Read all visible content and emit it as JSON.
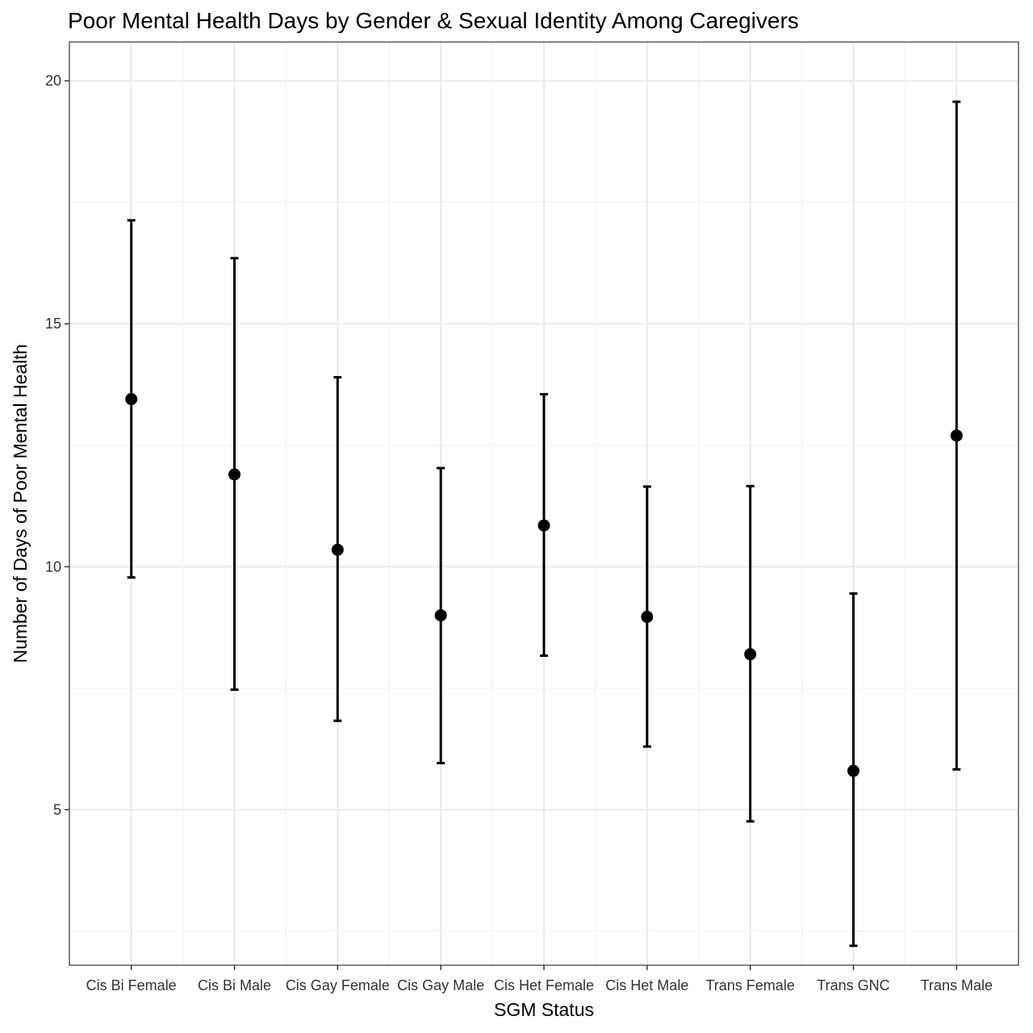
{
  "chart_data": {
    "type": "scatter",
    "subtype": "point-with-errorbars",
    "title": "Poor Mental Health Days by Gender & Sexual Identity Among Caregivers",
    "xlabel": "SGM Status",
    "ylabel": "Number of Days of Poor Mental Health",
    "categories": [
      "Cis Bi Female",
      "Cis Bi Male",
      "Cis Gay Female",
      "Cis Gay Male",
      "Cis Het Female",
      "Cis Het Male",
      "Trans Female",
      "Trans GNC",
      "Trans Male"
    ],
    "values": [
      13.45,
      11.9,
      10.35,
      9.0,
      10.85,
      8.97,
      8.2,
      5.8,
      12.7
    ],
    "lower": [
      9.78,
      7.47,
      6.83,
      5.96,
      8.17,
      6.3,
      4.76,
      2.2,
      5.83
    ],
    "upper": [
      17.13,
      16.35,
      13.9,
      12.03,
      13.55,
      11.65,
      11.66,
      9.45,
      19.57
    ],
    "ylim": [
      1.8,
      20.8
    ],
    "yticks": [
      5,
      10,
      15,
      20
    ],
    "grid": true,
    "colors": {
      "point": "#000000",
      "errorbar": "#000000",
      "grid_major": "#ebebeb",
      "grid_minor": "#f2f2f2",
      "panel_border": "#333333"
    }
  }
}
